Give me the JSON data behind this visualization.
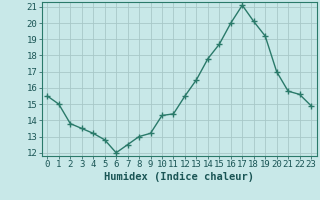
{
  "x": [
    0,
    1,
    2,
    3,
    4,
    5,
    6,
    7,
    8,
    9,
    10,
    11,
    12,
    13,
    14,
    15,
    16,
    17,
    18,
    19,
    20,
    21,
    22,
    23
  ],
  "y": [
    15.5,
    15.0,
    13.8,
    13.5,
    13.2,
    12.8,
    12.0,
    12.5,
    13.0,
    13.2,
    14.3,
    14.4,
    15.5,
    16.5,
    17.8,
    18.7,
    20.0,
    21.1,
    20.1,
    19.2,
    17.0,
    15.8,
    15.6,
    14.9
  ],
  "xlabel": "Humidex (Indice chaleur)",
  "ylim": [
    11.8,
    21.3
  ],
  "xlim": [
    -0.5,
    23.5
  ],
  "yticks": [
    12,
    13,
    14,
    15,
    16,
    17,
    18,
    19,
    20,
    21
  ],
  "xticks": [
    0,
    1,
    2,
    3,
    4,
    5,
    6,
    7,
    8,
    9,
    10,
    11,
    12,
    13,
    14,
    15,
    16,
    17,
    18,
    19,
    20,
    21,
    22,
    23
  ],
  "line_color": "#2a7a6a",
  "marker_color": "#2a7a6a",
  "bg_color": "#c8e8e8",
  "grid_color": "#a8c8c8",
  "axis_color": "#2a7a6a",
  "tick_label_color": "#1a5555",
  "xlabel_color": "#1a5555",
  "xlabel_fontsize": 7.5,
  "tick_fontsize": 6.5
}
